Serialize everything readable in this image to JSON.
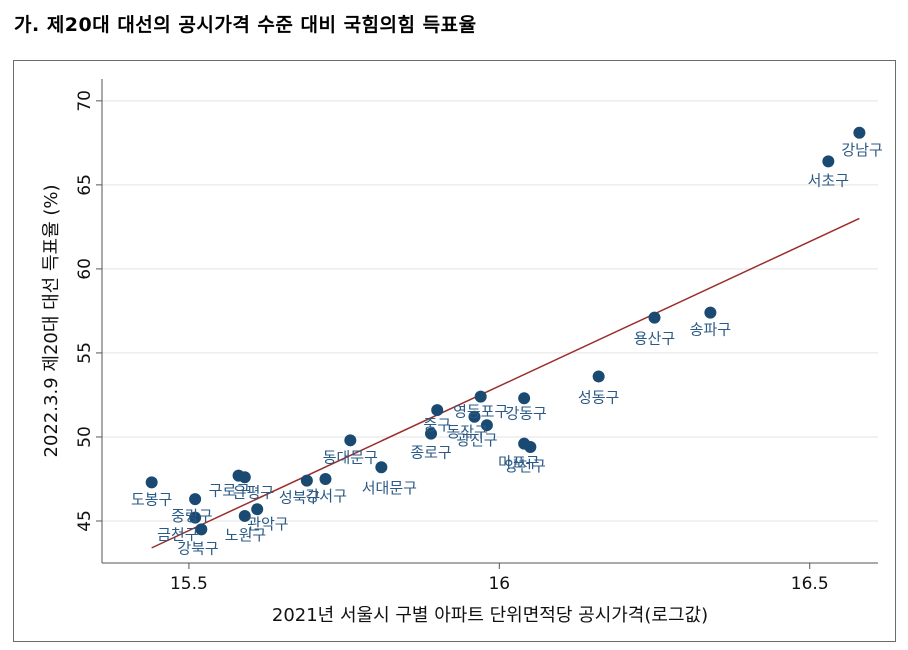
{
  "heading": "가. 제20대 대선의 공시가격 수준 대비 국힘의힘 득표율",
  "chart_data": {
    "type": "scatter",
    "title": "",
    "xlabel": "2021년 서울시 구별 아파트 단위면적당 공시가격(로그값)",
    "ylabel": "2022.3.9 제20대 대선 득표율 (%)",
    "xlim": [
      15.36,
      16.61
    ],
    "ylim": [
      42.5,
      71.3
    ],
    "xticks": [
      15.5,
      16,
      16.5
    ],
    "xtick_labels": [
      "15.5",
      "16",
      "16.5"
    ],
    "yticks": [
      45,
      50,
      55,
      60,
      65,
      70
    ],
    "ytick_labels": [
      "45",
      "50",
      "55",
      "60",
      "65",
      "70"
    ],
    "grid": true,
    "colors": {
      "point": "#1a4a72",
      "fit_line": "#9b2d2d",
      "label": "#2b5a85",
      "grid": "#e3e3e3"
    },
    "fit_line": {
      "x": [
        15.44,
        16.58
      ],
      "y": [
        43.4,
        63.0
      ]
    },
    "points": [
      {
        "label": "강남구",
        "x": 16.58,
        "y": 68.1
      },
      {
        "label": "서초구",
        "x": 16.53,
        "y": 66.4
      },
      {
        "label": "송파구",
        "x": 16.34,
        "y": 57.4
      },
      {
        "label": "용산구",
        "x": 16.25,
        "y": 57.1
      },
      {
        "label": "성동구",
        "x": 16.16,
        "y": 53.6
      },
      {
        "label": "강동구",
        "x": 16.04,
        "y": 52.3
      },
      {
        "label": "영등포구",
        "x": 15.97,
        "y": 52.4
      },
      {
        "label": "동작구",
        "x": 15.96,
        "y": 51.2
      },
      {
        "label": "광진구",
        "x": 15.98,
        "y": 50.7
      },
      {
        "label": "중구",
        "x": 15.9,
        "y": 51.6
      },
      {
        "label": "종로구",
        "x": 15.89,
        "y": 50.2
      },
      {
        "label": "마포구",
        "x": 16.04,
        "y": 49.6
      },
      {
        "label": "양천구",
        "x": 16.05,
        "y": 49.4
      },
      {
        "label": "동대문구",
        "x": 15.76,
        "y": 49.8
      },
      {
        "label": "서대문구",
        "x": 15.81,
        "y": 48.2
      },
      {
        "label": "성북구",
        "x": 15.69,
        "y": 47.4
      },
      {
        "label": "강서구",
        "x": 15.72,
        "y": 47.5
      },
      {
        "label": "구로구",
        "x": 15.58,
        "y": 47.7
      },
      {
        "label": "은평구",
        "x": 15.59,
        "y": 47.6
      },
      {
        "label": "관악구",
        "x": 15.61,
        "y": 45.7
      },
      {
        "label": "노원구",
        "x": 15.59,
        "y": 45.3
      },
      {
        "label": "도봉구",
        "x": 15.44,
        "y": 47.3
      },
      {
        "label": "중랑구",
        "x": 15.51,
        "y": 46.3
      },
      {
        "label": "금천구",
        "x": 15.51,
        "y": 45.2
      },
      {
        "label": "강북구",
        "x": 15.52,
        "y": 44.5
      }
    ]
  }
}
